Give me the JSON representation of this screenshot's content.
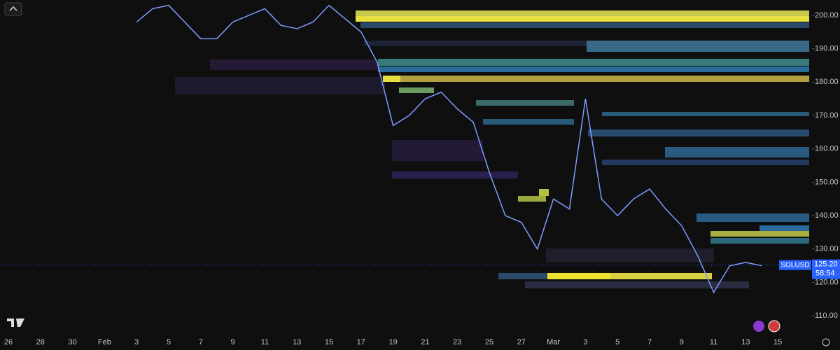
{
  "chart_data": {
    "type": "line",
    "symbol": "SOLUSD",
    "last_price": {
      "value": 125.2,
      "label": "125.20"
    },
    "countdown": "58:54",
    "categories": [
      "26",
      null,
      "28",
      null,
      "30",
      null,
      "Feb",
      null,
      "3",
      null,
      "5",
      null,
      "7",
      null,
      "9",
      null,
      "11",
      null,
      "13",
      null,
      "15",
      null,
      "17",
      null,
      "19",
      null,
      "21",
      null,
      "23",
      null,
      "25",
      null,
      "27",
      null,
      "Mar",
      null,
      "3",
      null,
      "5",
      null,
      "7",
      null,
      "9",
      null,
      "11",
      null,
      "13",
      null,
      "15"
    ],
    "series": [
      {
        "color": "#7f9cff",
        "values": [
          null,
          null,
          null,
          null,
          null,
          null,
          null,
          null,
          198,
          202,
          203,
          198,
          193,
          193,
          198,
          200,
          202,
          197,
          196,
          198,
          203,
          199,
          195,
          186,
          167,
          170,
          175,
          177,
          172,
          168,
          153,
          140,
          138,
          130,
          145,
          142,
          175,
          145,
          140,
          145,
          148,
          142,
          137,
          128,
          117,
          125,
          126,
          125,
          null
        ]
      }
    ],
    "ylim": [
      105,
      204.6
    ],
    "yticks": [
      {
        "value": 110,
        "label": "110.00"
      },
      {
        "value": 120,
        "label": "120.00"
      },
      {
        "value": 130,
        "label": "130.00"
      },
      {
        "value": 140,
        "label": "140.00"
      },
      {
        "value": 150,
        "label": "150.00"
      },
      {
        "value": 160,
        "label": "160.00"
      },
      {
        "value": 170,
        "label": "170.00"
      },
      {
        "value": 180,
        "label": "180.00"
      },
      {
        "value": 190,
        "label": "190.00"
      },
      {
        "value": 200,
        "label": "200.00"
      }
    ]
  }
}
